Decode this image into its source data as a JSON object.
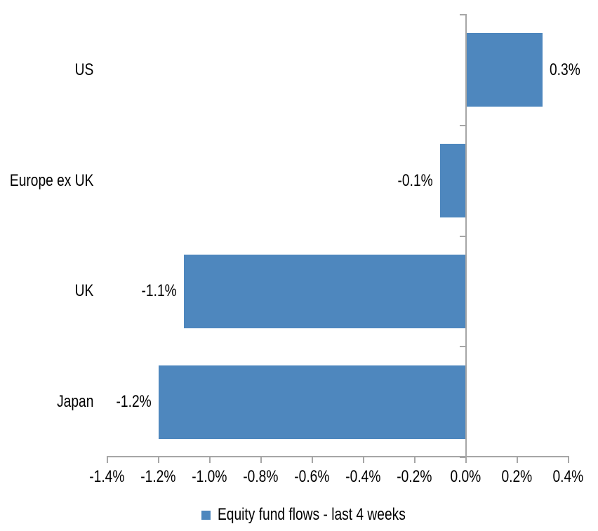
{
  "chart_data": {
    "type": "bar",
    "orientation": "horizontal",
    "title": "",
    "categories": [
      "US",
      "Europe ex UK",
      "UK",
      "Japan"
    ],
    "series": [
      {
        "name": "Equity fund flows - last 4 weeks",
        "values": [
          0.3,
          -0.1,
          -1.1,
          -1.2
        ],
        "value_labels": [
          "0.3%",
          "-0.1%",
          "-1.1%",
          "-1.2%"
        ]
      }
    ],
    "xlabel": "",
    "ylabel": "",
    "xlim": [
      -1.4,
      0.4
    ],
    "x_ticks": [
      {
        "value": -1.4,
        "label": "-1.4%"
      },
      {
        "value": -1.2,
        "label": "-1.2%"
      },
      {
        "value": -1.0,
        "label": "-1.0%"
      },
      {
        "value": -0.8,
        "label": "-0.8%"
      },
      {
        "value": -0.6,
        "label": "-0.6%"
      },
      {
        "value": -0.4,
        "label": "-0.4%"
      },
      {
        "value": -0.2,
        "label": "-0.2%"
      },
      {
        "value": 0.0,
        "label": "0.0%"
      },
      {
        "value": 0.2,
        "label": "0.2%"
      },
      {
        "value": 0.4,
        "label": "0.4%"
      }
    ],
    "grid": false,
    "legend_position": "bottom",
    "legend": [
      "Equity fund flows - last 4 weeks"
    ],
    "bar_color": "#4E87BE",
    "axis_color": "#A6A6A6",
    "text_color": "#000000"
  }
}
